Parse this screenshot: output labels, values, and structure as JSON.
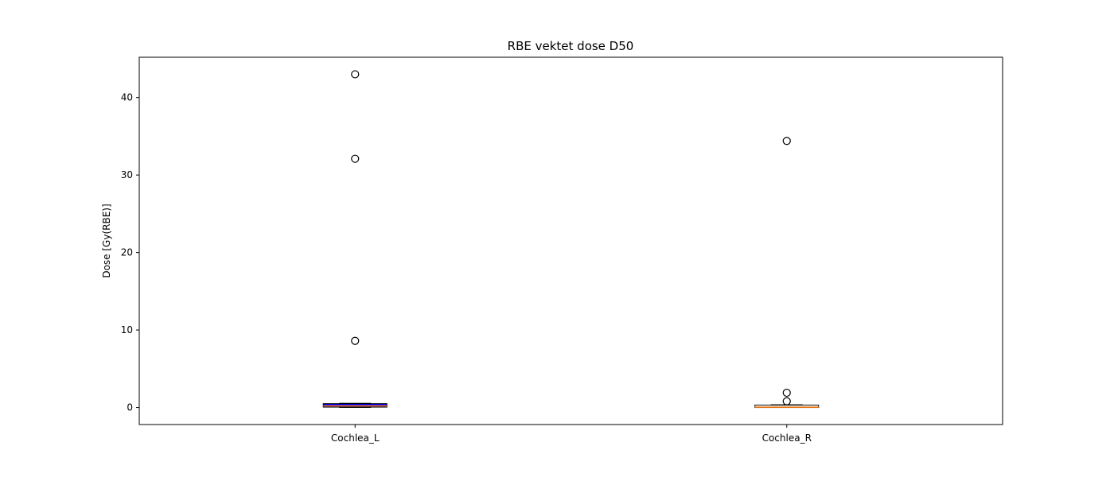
{
  "chart_data": {
    "type": "box",
    "title": "RBE vektet dose D50",
    "xlabel": "",
    "ylabel": "Dose [Gy(RBE)]",
    "ylim": [
      -2.2,
      45.2
    ],
    "yticks": [
      0,
      10,
      20,
      30,
      40
    ],
    "categories": [
      "Cochlea_L",
      "Cochlea_R"
    ],
    "boxes": [
      {
        "name": "Cochlea_L",
        "whisker_low": 0.0,
        "q1": 0.05,
        "median": 0.2,
        "q3": 0.5,
        "whisker_high": 0.55,
        "outliers": [
          8.6,
          32.1,
          43.0
        ],
        "box_color": "#0000ff",
        "median_color": "#ff7f0e"
      },
      {
        "name": "Cochlea_R",
        "whisker_low": 0.0,
        "q1": 0.0,
        "median": 0.05,
        "q3": 0.3,
        "whisker_high": 0.35,
        "outliers": [
          0.8,
          1.9,
          34.4
        ],
        "box_color": "#ffffff",
        "median_color": "#ff7f0e"
      }
    ],
    "grid": false,
    "legend": "none"
  }
}
